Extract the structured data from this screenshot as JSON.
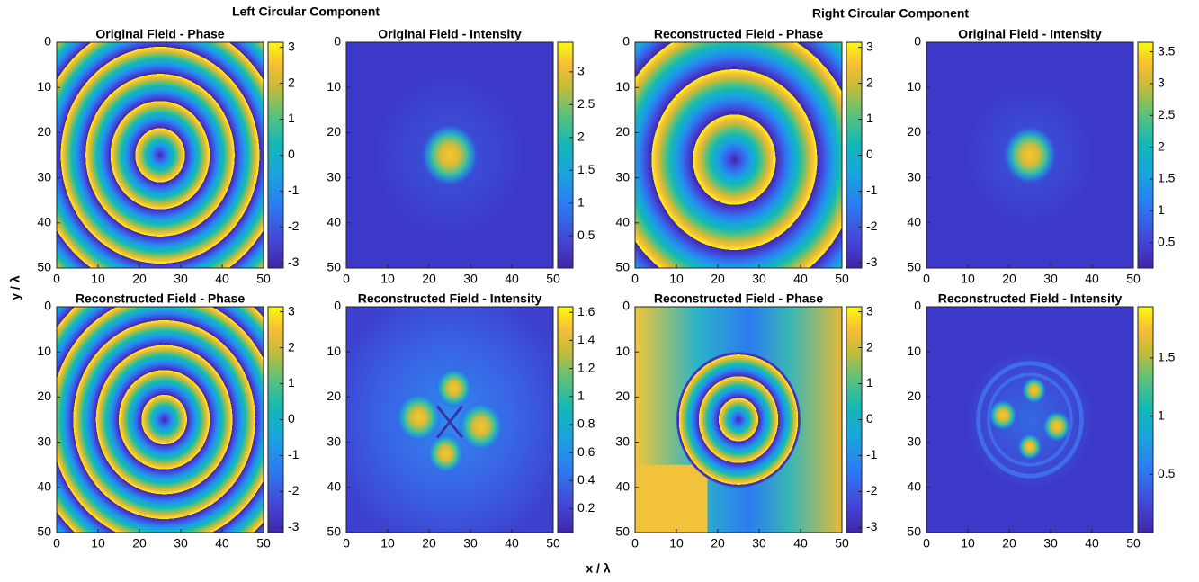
{
  "figure": {
    "group_titles": [
      "Left Circular Component",
      "Right Circular Component"
    ],
    "xlabel": "x / λ",
    "ylabel": "y / λ"
  },
  "chart_data": [
    {
      "type": "heatmap",
      "title": "Original Field - Phase",
      "xlim": [
        0,
        50
      ],
      "xticks": [
        0,
        10,
        20,
        30,
        40,
        50
      ],
      "ylim": [
        0,
        50
      ],
      "yticks": [
        0,
        10,
        20,
        30,
        40,
        50
      ],
      "y_direction": "reverse",
      "clim": [
        -3.14,
        3.14
      ],
      "cticks": [
        -3,
        -2,
        -1,
        0,
        1,
        2,
        3
      ]
    },
    {
      "type": "heatmap",
      "title": "Original Field - Intensity",
      "xlim": [
        0,
        50
      ],
      "xticks": [
        0,
        10,
        20,
        30,
        40,
        50
      ],
      "ylim": [
        0,
        50
      ],
      "yticks": [
        0,
        10,
        20,
        30,
        40,
        50
      ],
      "y_direction": "reverse",
      "clim": [
        0.01,
        3.45
      ],
      "cticks": [
        0.5,
        1,
        1.5,
        2,
        2.5,
        3
      ]
    },
    {
      "type": "heatmap",
      "title": "Reconstructed Field - Phase",
      "xlim": [
        0,
        50
      ],
      "xticks": [
        0,
        10,
        20,
        30,
        40,
        50
      ],
      "ylim": [
        0,
        50
      ],
      "yticks": [
        0,
        10,
        20,
        30,
        40,
        50
      ],
      "y_direction": "reverse",
      "clim": [
        -3.14,
        3.14
      ],
      "cticks": [
        -3,
        -2,
        -1,
        0,
        1,
        2,
        3
      ]
    },
    {
      "type": "heatmap",
      "title": "Original Field - Intensity",
      "xlim": [
        0,
        50
      ],
      "xticks": [
        0,
        10,
        20,
        30,
        40,
        50
      ],
      "ylim": [
        0,
        50
      ],
      "yticks": [
        0,
        10,
        20,
        30,
        40,
        50
      ],
      "y_direction": "reverse",
      "clim": [
        0.1,
        3.65
      ],
      "cticks": [
        0.5,
        1,
        1.5,
        2,
        2.5,
        3,
        3.5
      ]
    },
    {
      "type": "heatmap",
      "title": "Reconstructed Field - Phase",
      "xlim": [
        0,
        50
      ],
      "xticks": [
        0,
        10,
        20,
        30,
        40,
        50
      ],
      "ylim": [
        0,
        50
      ],
      "yticks": [
        0,
        10,
        20,
        30,
        40,
        50
      ],
      "y_direction": "reverse",
      "clim": [
        -3.14,
        3.14
      ],
      "cticks": [
        -3,
        -2,
        -1,
        0,
        1,
        2,
        3
      ]
    },
    {
      "type": "heatmap",
      "title": "Reconstructed Field - Intensity",
      "xlim": [
        0,
        50
      ],
      "xticks": [
        0,
        10,
        20,
        30,
        40,
        50
      ],
      "ylim": [
        0,
        50
      ],
      "yticks": [
        0,
        10,
        20,
        30,
        40,
        50
      ],
      "y_direction": "reverse",
      "clim": [
        0.03,
        1.64
      ],
      "cticks": [
        0.2,
        0.4,
        0.6,
        0.8,
        1,
        1.2,
        1.4,
        1.6
      ]
    },
    {
      "type": "heatmap",
      "title": "Reconstructed Field - Phase",
      "xlim": [
        0,
        50
      ],
      "xticks": [
        0,
        10,
        20,
        30,
        40,
        50
      ],
      "ylim": [
        0,
        50
      ],
      "yticks": [
        0,
        10,
        20,
        30,
        40,
        50
      ],
      "y_direction": "reverse",
      "clim": [
        -3.14,
        3.14
      ],
      "cticks": [
        -3,
        -2,
        -1,
        0,
        1,
        2,
        3
      ]
    },
    {
      "type": "heatmap",
      "title": "Reconstructed Field - Intensity",
      "xlim": [
        0,
        50
      ],
      "xticks": [
        0,
        10,
        20,
        30,
        40,
        50
      ],
      "ylim": [
        0,
        50
      ],
      "yticks": [
        0,
        10,
        20,
        30,
        40,
        50
      ],
      "y_direction": "reverse",
      "clim": [
        0,
        1.94
      ],
      "cticks": [
        0.5,
        1,
        1.5
      ]
    }
  ]
}
